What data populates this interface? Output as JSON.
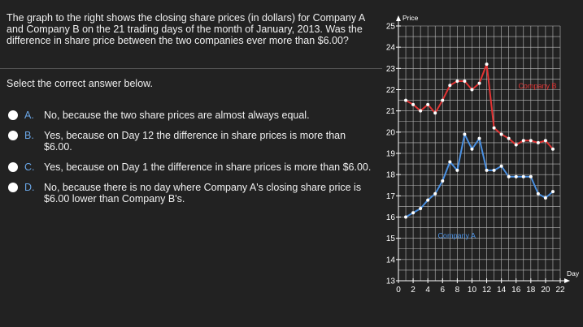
{
  "question": {
    "text": "The graph to the right shows the closing share prices (in dollars) for Company A and Company B on the 21 trading days of the month of January, 2013. Was the difference in share price between the two companies ever more than $6.00?"
  },
  "instruction": "Select the correct answer below.",
  "choices": [
    {
      "letter": "A.",
      "text": "No, because the two share prices are almost always equal."
    },
    {
      "letter": "B.",
      "text": "Yes, because on Day 12 the difference in share prices is more than $6.00."
    },
    {
      "letter": "C.",
      "text": "Yes, because on Day 1 the difference in share prices is more than $6.00."
    },
    {
      "letter": "D.",
      "text": "No, because there is no day where Company A's closing share price is $6.00 lower than Company B's."
    }
  ],
  "chart_data": {
    "type": "line",
    "xlabel": "Day",
    "ylabel": "Price",
    "xlim": [
      0,
      22
    ],
    "ylim": [
      13,
      25
    ],
    "x_ticks": [
      "0",
      "2",
      "4",
      "6",
      "8",
      "10",
      "12",
      "14",
      "16",
      "18",
      "20",
      "22"
    ],
    "y_ticks": [
      "13",
      "14",
      "15",
      "16",
      "17",
      "18",
      "19",
      "20",
      "21",
      "22",
      "23",
      "24",
      "25"
    ],
    "grid": true,
    "series": [
      {
        "name": "Company B",
        "color": "#e33333",
        "points": [
          [
            1,
            21.5
          ],
          [
            2,
            21.3
          ],
          [
            3,
            21.0
          ],
          [
            4,
            21.3
          ],
          [
            5,
            20.9
          ],
          [
            6,
            21.5
          ],
          [
            7,
            22.2
          ],
          [
            8,
            22.4
          ],
          [
            9,
            22.4
          ],
          [
            10,
            22.0
          ],
          [
            11,
            22.3
          ],
          [
            12,
            23.2
          ],
          [
            13,
            20.2
          ],
          [
            14,
            19.9
          ],
          [
            15,
            19.7
          ],
          [
            16,
            19.4
          ],
          [
            17,
            19.6
          ],
          [
            18,
            19.6
          ],
          [
            19,
            19.5
          ],
          [
            20,
            19.6
          ],
          [
            21,
            19.2
          ]
        ]
      },
      {
        "name": "Company A",
        "color": "#4a90e2",
        "points": [
          [
            1,
            16.0
          ],
          [
            2,
            16.2
          ],
          [
            3,
            16.4
          ],
          [
            4,
            16.8
          ],
          [
            5,
            17.1
          ],
          [
            6,
            17.7
          ],
          [
            7,
            18.6
          ],
          [
            8,
            18.2
          ],
          [
            9,
            19.9
          ],
          [
            10,
            19.2
          ],
          [
            11,
            19.7
          ],
          [
            12,
            18.2
          ],
          [
            13,
            18.2
          ],
          [
            14,
            18.4
          ],
          [
            15,
            17.9
          ],
          [
            16,
            17.9
          ],
          [
            17,
            17.9
          ],
          [
            18,
            17.9
          ],
          [
            19,
            17.1
          ],
          [
            20,
            16.9
          ],
          [
            21,
            17.2
          ]
        ]
      }
    ]
  }
}
